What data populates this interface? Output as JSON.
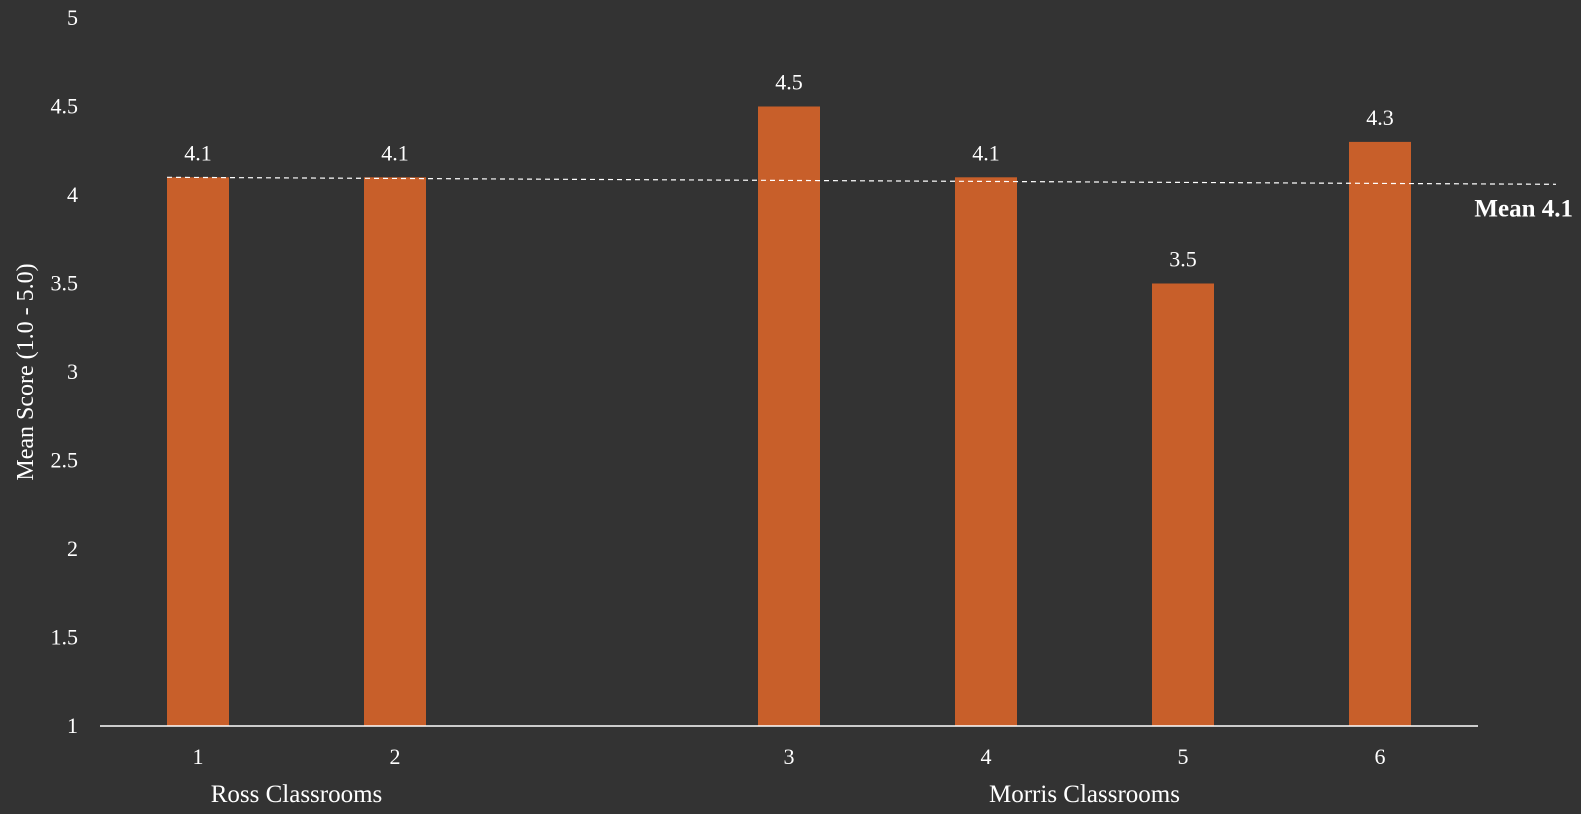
{
  "chart_data": {
    "type": "bar",
    "title": "",
    "xlabel": "",
    "ylabel": "Mean Score (1.0 - 5.0)",
    "ylim": [
      1,
      5
    ],
    "yticks": [
      "1",
      "1.5",
      "2",
      "2.5",
      "3",
      "3.5",
      "4",
      "4.5",
      "5"
    ],
    "categories": [
      "1",
      "2",
      "3",
      "4",
      "5",
      "6"
    ],
    "values": [
      4.1,
      4.1,
      4.5,
      4.1,
      3.5,
      4.3
    ],
    "data_labels": [
      "4.1",
      "4.1",
      "4.5",
      "4.1",
      "3.5",
      "4.3"
    ],
    "groups": [
      {
        "label": "Ross Classrooms",
        "categories": [
          "1",
          "2"
        ]
      },
      {
        "label": "Morris Classrooms",
        "categories": [
          "3",
          "4",
          "5",
          "6"
        ]
      }
    ],
    "reference_line": {
      "label": "Mean 4.1",
      "value": 4.1,
      "style": "dashed"
    },
    "bar_color": "#C85F2A",
    "background_color": "#333333",
    "grid": false,
    "legend": "none"
  }
}
